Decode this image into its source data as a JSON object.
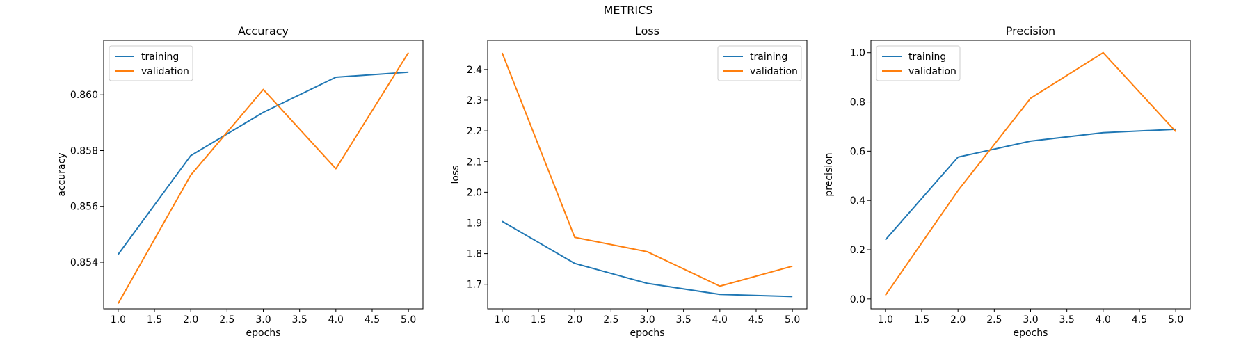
{
  "figure": {
    "suptitle": "METRICS"
  },
  "colors": {
    "training": "#1f77b4",
    "validation": "#ff7f0e",
    "axes": "#000000"
  },
  "chart_data": [
    {
      "type": "line",
      "title": "Accuracy",
      "xlabel": "epochs",
      "ylabel": "accuracy",
      "x": [
        1,
        2,
        3,
        4,
        5
      ],
      "xlim": [
        0.8,
        5.2
      ],
      "ylim": [
        0.85233,
        0.86195
      ],
      "xticks": [
        1.0,
        1.5,
        2.0,
        2.5,
        3.0,
        3.5,
        4.0,
        4.5,
        5.0
      ],
      "xtick_labels": [
        "1.0",
        "1.5",
        "2.0",
        "2.5",
        "3.0",
        "3.5",
        "4.0",
        "4.5",
        "5.0"
      ],
      "yticks": [
        0.854,
        0.856,
        0.858,
        0.86
      ],
      "ytick_labels": [
        "0.854",
        "0.856",
        "0.858",
        "0.860"
      ],
      "legend_position": "top-left",
      "series": [
        {
          "name": "training",
          "values": [
            0.85428,
            0.85782,
            0.85937,
            0.86063,
            0.86081
          ]
        },
        {
          "name": "validation",
          "values": [
            0.85252,
            0.85712,
            0.86019,
            0.85735,
            0.86151
          ]
        }
      ]
    },
    {
      "type": "line",
      "title": "Loss",
      "xlabel": "epochs",
      "ylabel": "loss",
      "x": [
        1,
        2,
        3,
        4,
        5
      ],
      "xlim": [
        0.8,
        5.2
      ],
      "ylim": [
        1.62,
        2.495
      ],
      "xticks": [
        1.0,
        1.5,
        2.0,
        2.5,
        3.0,
        3.5,
        4.0,
        4.5,
        5.0
      ],
      "xtick_labels": [
        "1.0",
        "1.5",
        "2.0",
        "2.5",
        "3.0",
        "3.5",
        "4.0",
        "4.5",
        "5.0"
      ],
      "yticks": [
        1.7,
        1.8,
        1.9,
        2.0,
        2.1,
        2.2,
        2.3,
        2.4
      ],
      "ytick_labels": [
        "1.7",
        "1.8",
        "1.9",
        "2.0",
        "2.1",
        "2.2",
        "2.3",
        "2.4"
      ],
      "legend_position": "top-right",
      "series": [
        {
          "name": "training",
          "values": [
            1.905,
            1.768,
            1.703,
            1.667,
            1.66
          ]
        },
        {
          "name": "validation",
          "values": [
            2.454,
            1.853,
            1.806,
            1.694,
            1.759
          ]
        }
      ]
    },
    {
      "type": "line",
      "title": "Precision",
      "xlabel": "epochs",
      "ylabel": "precision",
      "x": [
        1,
        2,
        3,
        4,
        5
      ],
      "xlim": [
        0.8,
        5.2
      ],
      "ylim": [
        -0.04,
        1.05
      ],
      "xticks": [
        1.0,
        1.5,
        2.0,
        2.5,
        3.0,
        3.5,
        4.0,
        4.5,
        5.0
      ],
      "xtick_labels": [
        "1.0",
        "1.5",
        "2.0",
        "2.5",
        "3.0",
        "3.5",
        "4.0",
        "4.5",
        "5.0"
      ],
      "yticks": [
        0.0,
        0.2,
        0.4,
        0.6,
        0.8,
        1.0
      ],
      "ytick_labels": [
        "0.0",
        "0.2",
        "0.4",
        "0.6",
        "0.8",
        "1.0"
      ],
      "legend_position": "top-left",
      "series": [
        {
          "name": "training",
          "values": [
            0.24,
            0.576,
            0.641,
            0.675,
            0.689
          ]
        },
        {
          "name": "validation",
          "values": [
            0.015,
            0.44,
            0.815,
            1.0,
            0.68
          ]
        }
      ]
    }
  ]
}
